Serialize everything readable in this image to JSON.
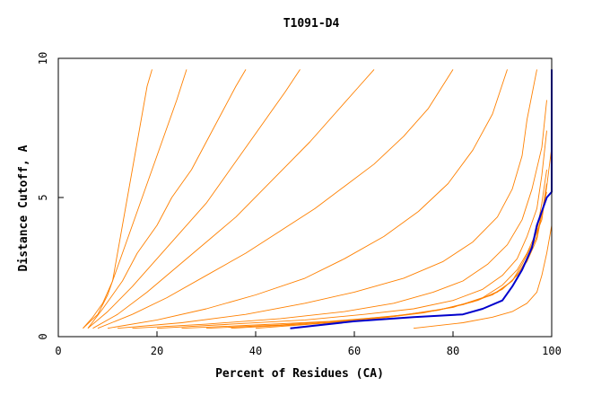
{
  "chart_data": {
    "type": "line",
    "title": "T1091-D4",
    "xlabel": "Percent of Residues (CA)",
    "ylabel": "Distance Cutoff, A",
    "xlim": [
      0,
      100
    ],
    "ylim": [
      0,
      10
    ],
    "x_ticks": [
      "0",
      "20",
      "40",
      "60",
      "80",
      "100"
    ],
    "y_ticks": [
      "0",
      "5",
      "10"
    ],
    "grid": false,
    "legend": "none",
    "colors": {
      "models": "#ff8000",
      "highlight": "#0000cc",
      "axis": "#000000",
      "background": "#ffffff"
    },
    "highlight_series": {
      "values": [
        [
          47,
          0.3
        ],
        [
          60,
          0.55
        ],
        [
          72,
          0.7
        ],
        [
          82,
          0.8
        ],
        [
          86,
          1.0
        ],
        [
          90,
          1.3
        ],
        [
          92,
          1.8
        ],
        [
          94,
          2.4
        ],
        [
          96,
          3.2
        ],
        [
          97,
          4.0
        ],
        [
          98,
          4.5
        ],
        [
          99,
          5.0
        ],
        [
          100,
          5.2
        ],
        [
          100,
          7.0
        ],
        [
          100,
          9.6
        ]
      ]
    },
    "model_series": [
      {
        "values": [
          [
            5,
            0.3
          ],
          [
            7,
            0.7
          ],
          [
            9,
            1.2
          ],
          [
            11,
            2.0
          ],
          [
            12,
            3.0
          ],
          [
            13,
            4.0
          ],
          [
            14,
            5.0
          ],
          [
            15,
            6.0
          ],
          [
            16,
            7.0
          ],
          [
            17,
            8.0
          ],
          [
            18,
            9.0
          ],
          [
            19,
            9.6
          ]
        ]
      },
      {
        "values": [
          [
            5,
            0.3
          ],
          [
            8,
            0.8
          ],
          [
            10,
            1.5
          ],
          [
            12,
            2.5
          ],
          [
            14,
            3.5
          ],
          [
            16,
            4.5
          ],
          [
            18,
            5.5
          ],
          [
            20,
            6.5
          ],
          [
            22,
            7.5
          ],
          [
            24,
            8.5
          ],
          [
            26,
            9.6
          ]
        ]
      },
      {
        "values": [
          [
            6,
            0.3
          ],
          [
            9,
            1.0
          ],
          [
            13,
            2.0
          ],
          [
            16,
            3.0
          ],
          [
            20,
            4.0
          ],
          [
            23,
            5.0
          ],
          [
            27,
            6.0
          ],
          [
            30,
            7.0
          ],
          [
            33,
            8.0
          ],
          [
            36,
            9.0
          ],
          [
            38,
            9.6
          ]
        ]
      },
      {
        "values": [
          [
            6,
            0.3
          ],
          [
            10,
            0.9
          ],
          [
            15,
            1.8
          ],
          [
            20,
            2.8
          ],
          [
            25,
            3.8
          ],
          [
            30,
            4.8
          ],
          [
            34,
            5.8
          ],
          [
            38,
            6.8
          ],
          [
            42,
            7.8
          ],
          [
            46,
            8.8
          ],
          [
            49,
            9.6
          ]
        ]
      },
      {
        "values": [
          [
            7,
            0.3
          ],
          [
            12,
            0.8
          ],
          [
            18,
            1.6
          ],
          [
            24,
            2.5
          ],
          [
            30,
            3.4
          ],
          [
            36,
            4.3
          ],
          [
            41,
            5.2
          ],
          [
            46,
            6.1
          ],
          [
            51,
            7.0
          ],
          [
            56,
            8.0
          ],
          [
            61,
            9.0
          ],
          [
            64,
            9.6
          ]
        ]
      },
      {
        "values": [
          [
            8,
            0.3
          ],
          [
            15,
            0.8
          ],
          [
            22,
            1.4
          ],
          [
            30,
            2.2
          ],
          [
            38,
            3.0
          ],
          [
            45,
            3.8
          ],
          [
            52,
            4.6
          ],
          [
            58,
            5.4
          ],
          [
            64,
            6.2
          ],
          [
            70,
            7.2
          ],
          [
            75,
            8.2
          ],
          [
            80,
            9.6
          ]
        ]
      },
      {
        "values": [
          [
            10,
            0.3
          ],
          [
            20,
            0.6
          ],
          [
            30,
            1.0
          ],
          [
            40,
            1.5
          ],
          [
            50,
            2.1
          ],
          [
            58,
            2.8
          ],
          [
            66,
            3.6
          ],
          [
            73,
            4.5
          ],
          [
            79,
            5.5
          ],
          [
            84,
            6.7
          ],
          [
            88,
            8.0
          ],
          [
            91,
            9.6
          ]
        ]
      },
      {
        "values": [
          [
            12,
            0.3
          ],
          [
            25,
            0.5
          ],
          [
            38,
            0.8
          ],
          [
            50,
            1.2
          ],
          [
            60,
            1.6
          ],
          [
            70,
            2.1
          ],
          [
            78,
            2.7
          ],
          [
            84,
            3.4
          ],
          [
            89,
            4.3
          ],
          [
            92,
            5.3
          ],
          [
            94,
            6.5
          ],
          [
            95,
            7.8
          ],
          [
            97,
            9.6
          ]
        ]
      },
      {
        "values": [
          [
            15,
            0.3
          ],
          [
            30,
            0.45
          ],
          [
            45,
            0.65
          ],
          [
            58,
            0.9
          ],
          [
            68,
            1.2
          ],
          [
            76,
            1.6
          ],
          [
            82,
            2.0
          ],
          [
            87,
            2.6
          ],
          [
            91,
            3.3
          ],
          [
            94,
            4.2
          ],
          [
            96,
            5.3
          ],
          [
            98,
            6.8
          ],
          [
            99,
            8.5
          ]
        ]
      },
      {
        "values": [
          [
            20,
            0.3
          ],
          [
            35,
            0.45
          ],
          [
            50,
            0.6
          ],
          [
            62,
            0.8
          ],
          [
            72,
            1.0
          ],
          [
            80,
            1.3
          ],
          [
            86,
            1.7
          ],
          [
            90,
            2.2
          ],
          [
            93,
            2.8
          ],
          [
            95,
            3.6
          ],
          [
            97,
            4.6
          ],
          [
            98,
            5.8
          ],
          [
            99,
            7.4
          ]
        ]
      },
      {
        "values": [
          [
            25,
            0.3
          ],
          [
            40,
            0.42
          ],
          [
            55,
            0.55
          ],
          [
            67,
            0.72
          ],
          [
            77,
            0.95
          ],
          [
            84,
            1.25
          ],
          [
            89,
            1.6
          ],
          [
            92,
            2.0
          ],
          [
            94,
            2.6
          ],
          [
            96,
            3.3
          ],
          [
            98,
            4.2
          ],
          [
            99,
            5.4
          ],
          [
            100,
            6.8
          ]
        ]
      },
      {
        "values": [
          [
            30,
            0.3
          ],
          [
            45,
            0.42
          ],
          [
            58,
            0.58
          ],
          [
            70,
            0.78
          ],
          [
            80,
            1.05
          ],
          [
            86,
            1.4
          ],
          [
            90,
            1.85
          ],
          [
            93,
            2.4
          ],
          [
            95,
            3.0
          ],
          [
            97,
            3.8
          ],
          [
            98,
            4.8
          ],
          [
            99,
            6.0
          ]
        ]
      },
      {
        "values": [
          [
            35,
            0.3
          ],
          [
            50,
            0.45
          ],
          [
            63,
            0.62
          ],
          [
            74,
            0.85
          ],
          [
            82,
            1.15
          ],
          [
            88,
            1.5
          ],
          [
            92,
            2.0
          ],
          [
            95,
            2.7
          ],
          [
            97,
            3.5
          ],
          [
            98,
            4.4
          ],
          [
            99,
            5.5
          ]
        ]
      },
      {
        "values": [
          [
            40,
            0.3
          ],
          [
            55,
            0.5
          ],
          [
            67,
            0.7
          ],
          [
            77,
            0.95
          ],
          [
            85,
            1.3
          ],
          [
            90,
            1.7
          ],
          [
            93,
            2.2
          ],
          [
            95,
            2.8
          ],
          [
            97,
            3.6
          ],
          [
            98,
            4.5
          ],
          [
            99,
            5.2
          ]
        ]
      },
      {
        "values": [
          [
            72,
            0.3
          ],
          [
            82,
            0.5
          ],
          [
            88,
            0.7
          ],
          [
            92,
            0.9
          ],
          [
            95,
            1.2
          ],
          [
            97,
            1.6
          ],
          [
            98,
            2.2
          ],
          [
            99,
            3.0
          ],
          [
            100,
            4.0
          ],
          [
            100,
            5.0
          ]
        ]
      }
    ]
  }
}
